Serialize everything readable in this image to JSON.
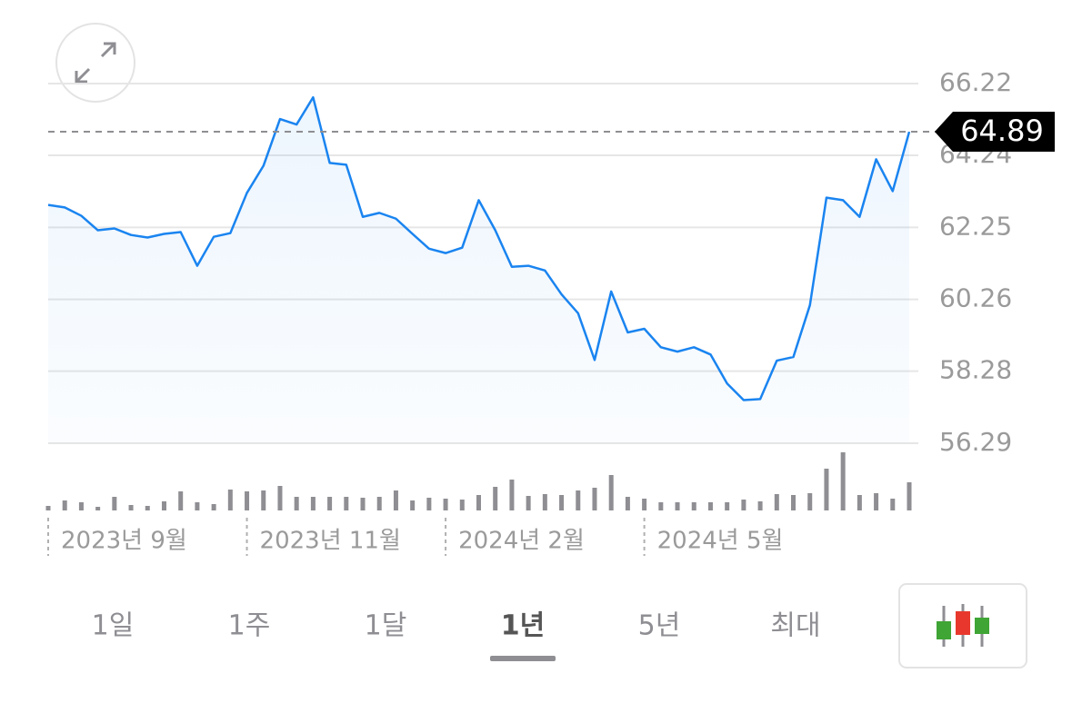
{
  "chart_data": {
    "type": "line",
    "categories": [
      "2023년 9월",
      null,
      null,
      null,
      null,
      null,
      null,
      null,
      null,
      null,
      null,
      null,
      "2023년 11월",
      null,
      null,
      null,
      null,
      null,
      null,
      null,
      null,
      null,
      null,
      null,
      "2024년 2월",
      null,
      null,
      null,
      null,
      null,
      null,
      null,
      null,
      null,
      null,
      null,
      "2024년 5월",
      null,
      null,
      null,
      null,
      null,
      null,
      null,
      null,
      null,
      null,
      null,
      null,
      null,
      null,
      null,
      null
    ],
    "values": [
      62.87,
      62.8,
      62.57,
      62.17,
      62.22,
      62.04,
      61.97,
      62.07,
      62.12,
      61.19,
      61.99,
      62.09,
      63.2,
      63.95,
      65.24,
      65.09,
      65.84,
      64.03,
      63.98,
      62.54,
      62.65,
      62.49,
      62.07,
      61.66,
      61.54,
      61.69,
      63.0,
      62.17,
      61.16,
      61.19,
      61.06,
      60.4,
      59.88,
      58.59,
      60.48,
      59.35,
      59.45,
      58.94,
      58.82,
      58.94,
      58.74,
      57.94,
      57.48,
      57.51,
      58.57,
      58.67,
      60.1,
      63.07,
      63.0,
      62.54,
      64.13,
      63.25,
      64.89
    ],
    "volume": [
      5,
      11,
      9,
      4,
      15,
      6,
      5,
      10,
      21,
      9,
      7,
      23,
      21,
      22,
      27,
      15,
      15,
      15,
      15,
      14,
      15,
      22,
      11,
      14,
      13,
      12,
      17,
      26,
      34,
      16,
      18,
      17,
      22,
      25,
      39,
      15,
      13,
      9,
      9,
      9,
      9,
      9,
      12,
      10,
      18,
      17,
      19,
      46,
      64,
      17,
      19,
      13,
      31
    ],
    "color": "#1a84f0",
    "volume_color": "#8e8e93",
    "ylim": [
      56.29,
      66.22
    ],
    "yticks": [
      56.29,
      58.28,
      60.26,
      62.25,
      64.24,
      66.22
    ],
    "grid": true,
    "last_value": 64.89
  },
  "tabs": [
    "1일",
    "1주",
    "1달",
    "1년",
    "5년",
    "최대"
  ],
  "selected_tab": 3
}
